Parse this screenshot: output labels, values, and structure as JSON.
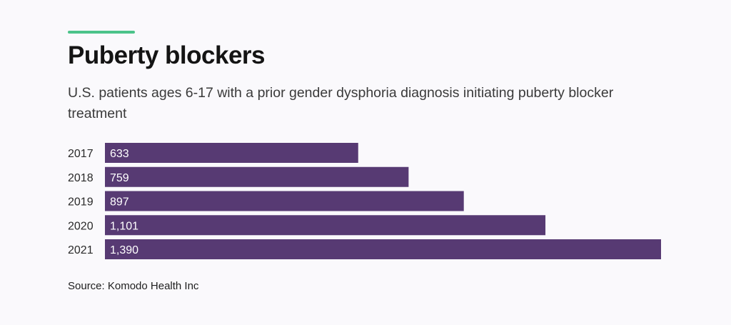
{
  "header": {
    "title": "Puberty blockers",
    "subtitle": "U.S. patients ages 6-17 with a prior gender dysphoria diagnosis initiating puberty blocker treatment"
  },
  "colors": {
    "accent": "#4cc38a",
    "bar": "#573a73",
    "bar_label": "#ffffff",
    "category_label": "#2a2a2a"
  },
  "chart_data": {
    "type": "bar",
    "orientation": "horizontal",
    "title": "Puberty blockers",
    "subtitle": "U.S. patients ages 6-17 with a prior gender dysphoria diagnosis initiating puberty blocker treatment",
    "categories": [
      "2017",
      "2018",
      "2019",
      "2020",
      "2021"
    ],
    "values": [
      633,
      759,
      897,
      1101,
      1390
    ],
    "value_labels": [
      "633",
      "759",
      "897",
      "1,101",
      "1,390"
    ],
    "xlim": [
      0,
      1390
    ],
    "grid": false,
    "legend": "none"
  },
  "footer": {
    "source": "Source: Komodo Health Inc"
  }
}
